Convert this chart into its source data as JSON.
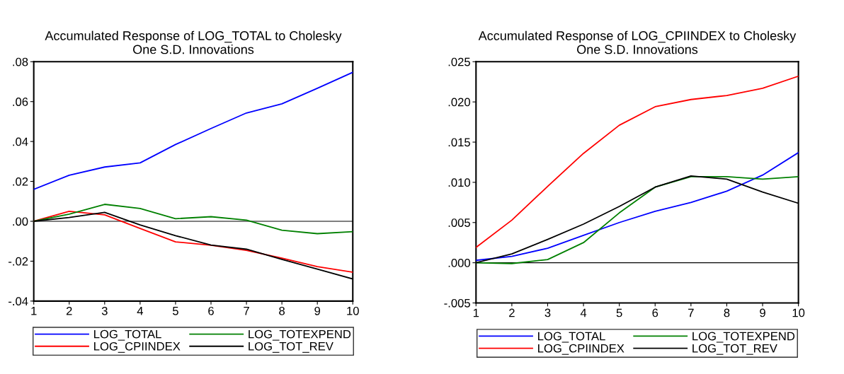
{
  "chart_data": [
    {
      "type": "line",
      "title": "Accumulated Response of LOG_TOTAL to Cholesky\nOne S.D. Innovations",
      "x": [
        1,
        2,
        3,
        4,
        5,
        6,
        7,
        8,
        9,
        10
      ],
      "xlim": [
        1,
        10
      ],
      "xticks": [
        1,
        2,
        3,
        4,
        5,
        6,
        7,
        8,
        9,
        10
      ],
      "ylim": [
        -0.04,
        0.08
      ],
      "yticks": [
        {
          "value": -0.04,
          "label": "-.04"
        },
        {
          "value": -0.02,
          "label": "-.02"
        },
        {
          "value": 0,
          "label": ".00"
        },
        {
          "value": 0.02,
          "label": ".02"
        },
        {
          "value": 0.04,
          "label": ".04"
        },
        {
          "value": 0.06,
          "label": ".06"
        },
        {
          "value": 0.08,
          "label": ".08"
        }
      ],
      "grid": false,
      "legend": "bottom",
      "ref_lines": [
        {
          "axis": "y",
          "value": 0,
          "color": "#000000"
        }
      ],
      "series": [
        {
          "name": "LOG_TOTAL",
          "color": "#0000ff",
          "values": [
            0.016,
            0.0231,
            0.0272,
            0.0293,
            0.0385,
            0.0465,
            0.0543,
            0.0589,
            0.0667,
            0.0747
          ]
        },
        {
          "name": "LOG_CPIINDEX",
          "color": "#ff0000",
          "values": [
            0,
            0.005,
            0.0032,
            -0.0036,
            -0.0103,
            -0.012,
            -0.0146,
            -0.0185,
            -0.0227,
            -0.0255
          ]
        },
        {
          "name": "LOG_TOTEXPEND",
          "color": "#008000",
          "values": [
            0,
            0.0036,
            0.0085,
            0.0064,
            0.0013,
            0.0023,
            0.0006,
            -0.0045,
            -0.0062,
            -0.0052
          ]
        },
        {
          "name": "LOG_TOT_REV",
          "color": "#000000",
          "values": [
            0,
            0.0019,
            0.0045,
            -0.0018,
            -0.0072,
            -0.0119,
            -0.014,
            -0.0191,
            -0.024,
            -0.0289
          ]
        }
      ]
    },
    {
      "type": "line",
      "title": "Accumulated Response of LOG_CPIINDEX to Cholesky\nOne S.D. Innovations",
      "x": [
        1,
        2,
        3,
        4,
        5,
        6,
        7,
        8,
        9,
        10
      ],
      "xlim": [
        1,
        10
      ],
      "xticks": [
        1,
        2,
        3,
        4,
        5,
        6,
        7,
        8,
        9,
        10
      ],
      "ylim": [
        -0.005,
        0.025
      ],
      "yticks": [
        {
          "value": -0.005,
          "label": "-.005"
        },
        {
          "value": 0,
          "label": ".000"
        },
        {
          "value": 0.005,
          "label": ".005"
        },
        {
          "value": 0.01,
          "label": ".010"
        },
        {
          "value": 0.015,
          "label": ".015"
        },
        {
          "value": 0.02,
          "label": ".020"
        },
        {
          "value": 0.025,
          "label": ".025"
        }
      ],
      "grid": false,
      "legend": "bottom",
      "ref_lines": [
        {
          "axis": "y",
          "value": 0,
          "color": "#000000"
        }
      ],
      "series": [
        {
          "name": "LOG_TOTAL",
          "color": "#0000ff",
          "values": [
            0.0003,
            0.0008,
            0.0018,
            0.0034,
            0.005,
            0.0064,
            0.0075,
            0.0089,
            0.0109,
            0.0137
          ]
        },
        {
          "name": "LOG_CPIINDEX",
          "color": "#ff0000",
          "values": [
            0.0019,
            0.0053,
            0.0095,
            0.0136,
            0.0171,
            0.0194,
            0.0203,
            0.0208,
            0.0217,
            0.0232
          ]
        },
        {
          "name": "LOG_TOTEXPEND",
          "color": "#008000",
          "values": [
            0,
            -0.0001,
            0.0004,
            0.0025,
            0.0062,
            0.0094,
            0.0107,
            0.0107,
            0.0104,
            0.0107
          ]
        },
        {
          "name": "LOG_TOT_REV",
          "color": "#000000",
          "values": [
            0,
            0.0011,
            0.0029,
            0.0048,
            0.007,
            0.0094,
            0.0108,
            0.0104,
            0.0088,
            0.0074
          ]
        }
      ]
    }
  ]
}
